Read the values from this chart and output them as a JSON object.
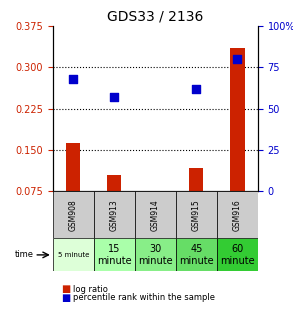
{
  "title": "GDS33 / 2136",
  "samples": [
    "GSM908",
    "GSM913",
    "GSM914",
    "GSM915",
    "GSM916"
  ],
  "time_labels": [
    "5 minute",
    "15\nminute",
    "30\nminute",
    "45\nminute",
    "60\nminute"
  ],
  "log_ratio": [
    0.163,
    0.105,
    0.0,
    0.118,
    0.335
  ],
  "percentile_rank": [
    68,
    57,
    null,
    62,
    80
  ],
  "ylim_left": [
    0.075,
    0.375
  ],
  "ylim_right": [
    0,
    100
  ],
  "yticks_left": [
    0.075,
    0.15,
    0.225,
    0.3,
    0.375
  ],
  "yticks_right": [
    0,
    25,
    50,
    75,
    100
  ],
  "bar_color": "#cc2200",
  "dot_color": "#0000cc",
  "grid_color": "#000000",
  "bg_color": "#ffffff",
  "sample_bg": "#cccccc",
  "time_bg_colors": [
    "#ddffdd",
    "#aaffaa",
    "#88ee88",
    "#66dd66",
    "#33cc33"
  ],
  "legend_bar_label": "log ratio",
  "legend_dot_label": "percentile rank within the sample",
  "left_axis_color": "#cc2200",
  "right_axis_color": "#0000cc"
}
